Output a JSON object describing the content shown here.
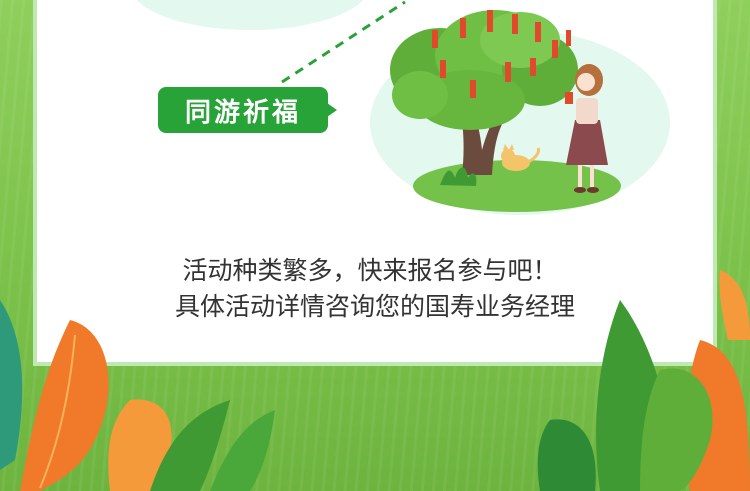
{
  "tag": {
    "label": "同游祈福"
  },
  "caption": {
    "line1": "活动种类繁多，快来报名参与吧！",
    "line2": "具体活动详情咨询您的国寿业务经理"
  },
  "colors": {
    "tag_green": "#27a338",
    "panel_border": "#bfe9b3",
    "bubble": "#e3f8ee",
    "grass": "#7cc24a",
    "leaf_orange": "#f07a2a"
  },
  "icons": [
    "tree-illustration",
    "girl-illustration",
    "cat-illustration",
    "leaf-decoration"
  ]
}
